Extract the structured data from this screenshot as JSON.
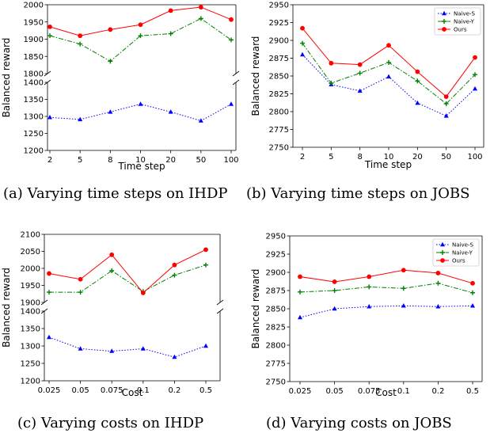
{
  "captions": {
    "a": "(a) Varying time steps on IHDP",
    "b": "(b) Varying time steps on JOBS",
    "c": "(c) Varying costs on IHDP",
    "d": "(d) Varying costs on JOBS"
  },
  "colors": {
    "Naive-S": "#0000ff",
    "Naive-Y": "#008000",
    "Ours": "#ff0000"
  },
  "chart_data": [
    {
      "id": "a",
      "type": "line",
      "broken_axis": true,
      "categories": [
        "2",
        "5",
        "8",
        "10",
        "20",
        "50",
        "100"
      ],
      "xlabel": "Time step",
      "ylabel": "Balanced reward",
      "ylim_upper": [
        1800,
        2000
      ],
      "yticks_upper": [
        1800,
        1850,
        1900,
        1950,
        2000
      ],
      "ylim_lower": [
        1200,
        1400
      ],
      "yticks_lower": [
        1200,
        1250,
        1300,
        1350,
        1400
      ],
      "legend": null,
      "grid": false,
      "series": [
        {
          "name": "Naive-S",
          "values": [
            1297,
            1291,
            1313,
            1336,
            1313,
            1287,
            1336
          ]
        },
        {
          "name": "Naive-Y",
          "values": [
            1910,
            1886,
            1836,
            1910,
            1916,
            1960,
            1898
          ]
        },
        {
          "name": "Ours",
          "values": [
            1936,
            1910,
            1928,
            1942,
            1983,
            1993,
            1957
          ]
        }
      ]
    },
    {
      "id": "b",
      "type": "line",
      "broken_axis": false,
      "categories": [
        "2",
        "5",
        "8",
        "10",
        "20",
        "50",
        "100"
      ],
      "xlabel": "Time step",
      "ylabel": "Balanced reward",
      "ylim": [
        2750,
        2950
      ],
      "yticks": [
        2750,
        2775,
        2800,
        2825,
        2850,
        2875,
        2900,
        2925,
        2950
      ],
      "legend": "top-right",
      "grid": false,
      "series": [
        {
          "name": "Naive-S",
          "values": [
            2880,
            2838,
            2829,
            2849,
            2812,
            2794,
            2832
          ]
        },
        {
          "name": "Naive-Y",
          "values": [
            2896,
            2840,
            2854,
            2869,
            2843,
            2811,
            2852
          ]
        },
        {
          "name": "Ours",
          "values": [
            2917,
            2868,
            2866,
            2893,
            2856,
            2821,
            2876
          ]
        }
      ]
    },
    {
      "id": "c",
      "type": "line",
      "broken_axis": true,
      "categories": [
        "0.025",
        "0.05",
        "0.075",
        "0.1",
        "0.2",
        "0.5"
      ],
      "xlabel": "Cost",
      "ylabel": "Balanced reward",
      "ylim_upper": [
        1900,
        2100
      ],
      "yticks_upper": [
        1900,
        1950,
        2000,
        2050,
        2100
      ],
      "ylim_lower": [
        1200,
        1400
      ],
      "yticks_lower": [
        1200,
        1250,
        1300,
        1350,
        1400
      ],
      "legend": null,
      "grid": false,
      "series": [
        {
          "name": "Naive-S",
          "values": [
            1325,
            1292,
            1285,
            1292,
            1268,
            1300
          ]
        },
        {
          "name": "Naive-Y",
          "values": [
            1930,
            1930,
            1993,
            1932,
            1980,
            2010
          ]
        },
        {
          "name": "Ours",
          "values": [
            1985,
            1968,
            2040,
            1928,
            2010,
            2055
          ]
        }
      ]
    },
    {
      "id": "d",
      "type": "line",
      "broken_axis": false,
      "categories": [
        "0.025",
        "0.05",
        "0.075",
        "0.1",
        "0.2",
        "0.5"
      ],
      "xlabel": "Cost",
      "ylabel": "Balanced reward",
      "ylim": [
        2750,
        2950
      ],
      "yticks": [
        2750,
        2775,
        2800,
        2825,
        2850,
        2875,
        2900,
        2925,
        2950
      ],
      "legend": "top-right",
      "grid": false,
      "series": [
        {
          "name": "Naive-S",
          "values": [
            2838,
            2850,
            2853,
            2854,
            2853,
            2854
          ]
        },
        {
          "name": "Naive-Y",
          "values": [
            2873,
            2875,
            2880,
            2878,
            2885,
            2872
          ]
        },
        {
          "name": "Ours",
          "values": [
            2894,
            2887,
            2894,
            2903,
            2899,
            2885
          ]
        }
      ]
    }
  ]
}
